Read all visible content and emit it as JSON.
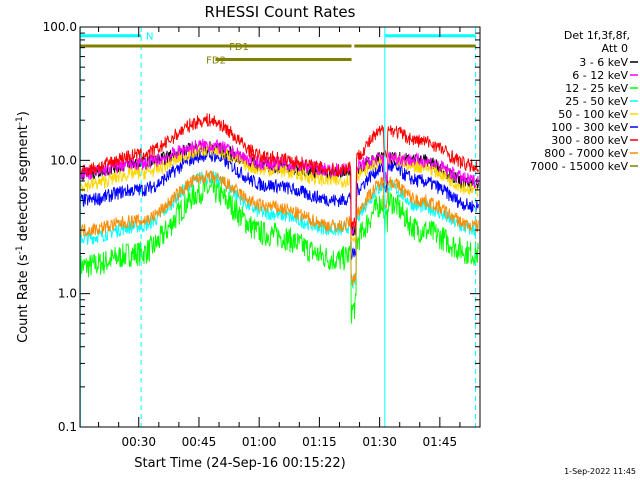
{
  "chart_data": {
    "type": "line",
    "title": "RHESSI Count Rates",
    "xlabel": "Start Time (24-Sep-16 00:15:22)",
    "ylabel_main": "Count Rate (s",
    "ylabel_exp1": "-1",
    "ylabel_mid": " detector segment",
    "ylabel_exp2": "-1",
    "ylabel_end": ")",
    "yscale": "log",
    "ylim": [
      0.1,
      100
    ],
    "xlim_minutes": [
      15.37,
      115.0
    ],
    "y_ticks": [
      {
        "value": 0.1,
        "label": "0.1"
      },
      {
        "value": 1,
        "label": "1.0"
      },
      {
        "value": 10,
        "label": "10.0"
      },
      {
        "value": 100,
        "label": "100.0"
      }
    ],
    "x_ticks": [
      {
        "minutes": 30,
        "label": "00:30"
      },
      {
        "minutes": 45,
        "label": "00:45"
      },
      {
        "minutes": 60,
        "label": "01:00"
      },
      {
        "minutes": 75,
        "label": "01:15"
      },
      {
        "minutes": 90,
        "label": "01:30"
      },
      {
        "minutes": 105,
        "label": "01:45"
      }
    ],
    "legend_header": [
      "Det 1f,3f,8f,",
      "Att 0"
    ],
    "legend_position": "right",
    "series": [
      {
        "name": "3 - 6 keV",
        "color": "#000000",
        "base": [
          8.0,
          9.5,
          12.5,
          9.0,
          8.0,
          10.5,
          10.0,
          6.5
        ]
      },
      {
        "name": "6 - 12 keV",
        "color": "#ff00ff",
        "base": [
          8.0,
          9.5,
          13.0,
          9.5,
          8.5,
          10.5,
          10.0,
          7.0
        ]
      },
      {
        "name": "12 - 25 keV",
        "color": "#00ff00",
        "base": [
          1.6,
          2.0,
          6.0,
          2.8,
          1.8,
          5.0,
          3.0,
          2.0
        ]
      },
      {
        "name": "25 - 50 keV",
        "color": "#00ffff",
        "base": [
          2.6,
          3.2,
          7.5,
          4.0,
          3.0,
          6.5,
          4.5,
          3.0
        ]
      },
      {
        "name": "50 - 100 keV",
        "color": "#ffd700",
        "base": [
          6.5,
          8.0,
          12.0,
          8.5,
          7.0,
          10.0,
          9.0,
          6.0
        ]
      },
      {
        "name": "100 - 300 keV",
        "color": "#0000ff",
        "base": [
          5.0,
          6.0,
          11.0,
          6.5,
          5.0,
          9.0,
          7.0,
          4.5
        ]
      },
      {
        "name": "300 - 800 keV",
        "color": "#ff0000",
        "base": [
          8.5,
          11.0,
          20.0,
          10.5,
          8.5,
          17.0,
          14.0,
          9.0
        ]
      },
      {
        "name": "800 - 7000 keV",
        "color": "#ff8c00",
        "base": [
          3.0,
          3.5,
          7.5,
          4.5,
          3.2,
          7.0,
          5.0,
          3.2
        ]
      },
      {
        "name": "7000 - 15000 keV",
        "color": "#808000",
        "base": [
          0,
          0,
          0,
          0,
          0,
          0,
          0,
          0
        ]
      }
    ],
    "profile_minutes": [
      16,
      30,
      47,
      62,
      80,
      92,
      100,
      114
    ],
    "flags": [
      {
        "name": "N",
        "color": "#00ffff",
        "segments": [
          [
            15.4,
            30.6
          ],
          [
            91.3,
            113.9
          ]
        ],
        "level": 86,
        "label_minutes": 31.8
      },
      {
        "name": "FD1",
        "color": "#808000",
        "segments": [
          [
            15.4,
            83.0
          ],
          [
            83.7,
            113.9
          ]
        ],
        "level": 72,
        "label_minutes": 52.5
      },
      {
        "name": "FD2",
        "color": "#808000",
        "segments": [
          [
            49.1,
            83.0
          ]
        ],
        "level": 57,
        "label_minutes": 46.8
      }
    ],
    "vertical_lines": [
      {
        "minutes": 15.45,
        "color": "#00ffff",
        "style": "solid"
      },
      {
        "minutes": 30.6,
        "color": "#00ffff",
        "style": "dashed"
      },
      {
        "minutes": 91.3,
        "color": "#00ffff",
        "style": "solid"
      },
      {
        "minutes": 113.9,
        "color": "#00ffff",
        "style": "dashed"
      }
    ]
  },
  "footer": {
    "timestamp": "1-Sep-2022 11:45"
  }
}
